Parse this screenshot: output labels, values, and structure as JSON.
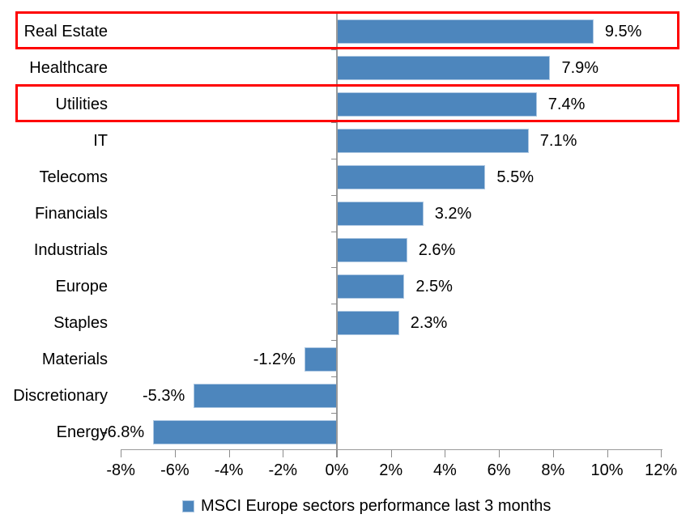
{
  "chart_data": {
    "type": "bar",
    "orientation": "horizontal",
    "title": "",
    "categories": [
      "Real Estate",
      "Healthcare",
      "Utilities",
      "IT",
      "Telecoms",
      "Financials",
      "Industrials",
      "Europe",
      "Staples",
      "Materials",
      "Discretionary",
      "Energy"
    ],
    "values": [
      9.5,
      7.9,
      7.4,
      7.1,
      5.5,
      3.2,
      2.6,
      2.5,
      2.3,
      -1.2,
      -5.3,
      -6.8
    ],
    "value_labels": [
      "9.5%",
      "7.9%",
      "7.4%",
      "7.1%",
      "5.5%",
      "3.2%",
      "2.6%",
      "2.5%",
      "2.3%",
      "-1.2%",
      "-5.3%",
      "-6.8%"
    ],
    "xlabel": "",
    "ylabel": "",
    "xlim": [
      -8,
      12
    ],
    "x_tick_values": [
      -8,
      -6,
      -4,
      -2,
      0,
      2,
      4,
      6,
      8,
      10,
      12
    ],
    "x_tick_labels": [
      "-8%",
      "-6%",
      "-4%",
      "-2%",
      "0%",
      "2%",
      "4%",
      "6%",
      "8%",
      "10%",
      "12%"
    ],
    "grid": false,
    "legend": "MSCI Europe sectors performance last 3 months",
    "legend_position": "bottom-center",
    "bar_color": "#4d86bd",
    "highlight_color": "#fe0000",
    "highlighted_categories": [
      "Real Estate",
      "Utilities"
    ]
  }
}
